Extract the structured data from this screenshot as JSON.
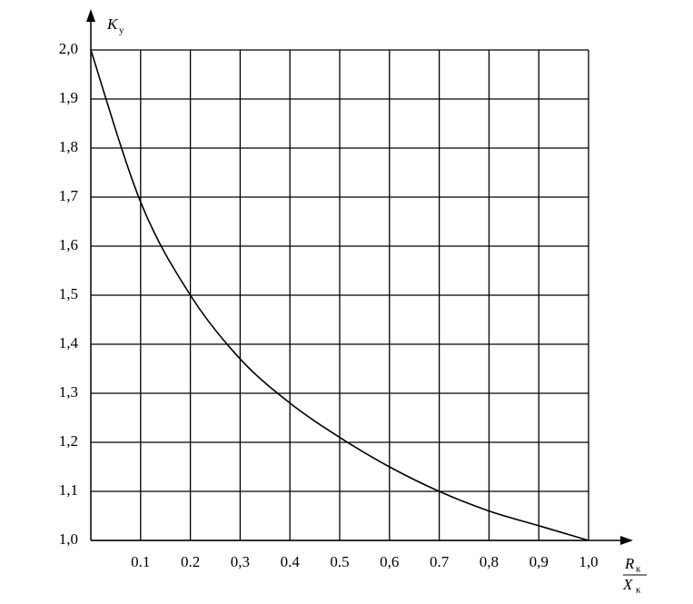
{
  "chart_data": {
    "type": "line",
    "ylabel": {
      "text": "K",
      "sub": "у"
    },
    "xlabel": {
      "numerator": {
        "text": "R",
        "sub": "к"
      },
      "denominator": {
        "text": "X",
        "sub": "к"
      }
    },
    "x": [
      0,
      0.1,
      0.2,
      0.3,
      0.4,
      0.5,
      0.6,
      0.7,
      0.8,
      0.9,
      1.0
    ],
    "series": [
      {
        "color": "#000000",
        "values": [
          2.0,
          1.69,
          1.5,
          1.37,
          1.28,
          1.21,
          1.15,
          1.1,
          1.06,
          1.03,
          1.0
        ]
      }
    ],
    "xlim": [
      0,
      1
    ],
    "ylim": [
      1,
      2
    ],
    "xticks": [
      0.1,
      0.2,
      {
        "value": 0.3,
        "label": "0,3"
      },
      0.4,
      0.5,
      {
        "value": 0.6,
        "label": "0,6"
      },
      0.7,
      {
        "value": 0.8,
        "label": "0,8"
      },
      {
        "value": 0.9,
        "label": "0,9"
      },
      {
        "value": 1.0,
        "label": "1,0"
      }
    ],
    "yticks": [
      {
        "value": 1.0,
        "label": "1,0"
      },
      {
        "value": 1.1,
        "label": "1,1"
      },
      {
        "value": 1.2,
        "label": "1,2"
      },
      {
        "value": 1.3,
        "label": "1,3"
      },
      {
        "value": 1.4,
        "label": "1,4"
      },
      {
        "value": 1.5,
        "label": "1,5"
      },
      {
        "value": 1.6,
        "label": "1,6"
      },
      {
        "value": 1.7,
        "label": "1,7"
      },
      {
        "value": 1.8,
        "label": "1,8"
      },
      {
        "value": 1.9,
        "label": "1,9"
      },
      {
        "value": 2.0,
        "label": "2,0"
      }
    ],
    "grid": true
  }
}
